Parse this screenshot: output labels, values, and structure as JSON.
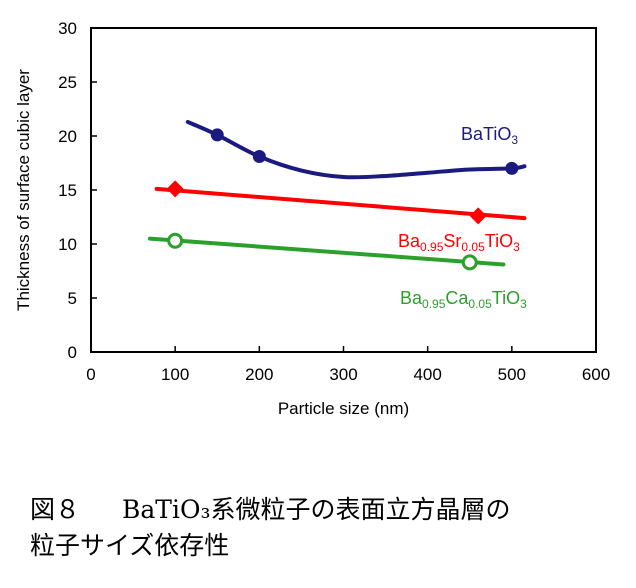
{
  "chart_data": {
    "type": "line",
    "xlabel": "Particle size (nm)",
    "ylabel": "Thickness of surface cubic layer",
    "xlim": [
      0,
      600
    ],
    "ylim": [
      0,
      30
    ],
    "xticks": [
      "0",
      "100",
      "200",
      "300",
      "400",
      "500",
      "600"
    ],
    "yticks": [
      "0",
      "5",
      "10",
      "15",
      "20",
      "25",
      "30"
    ],
    "grid": false,
    "series": [
      {
        "name": "BaTiO3",
        "label_main": "BaTiO",
        "label_sub": "3",
        "color": "#1a1a80",
        "marker": "circle-filled",
        "points": [
          [
            150,
            20.1
          ],
          [
            200,
            18.1
          ],
          [
            500,
            17.0
          ]
        ],
        "curve": [
          [
            115,
            21.3
          ],
          [
            150,
            20.1
          ],
          [
            200,
            18.1
          ],
          [
            250,
            16.8
          ],
          [
            300,
            16.2
          ],
          [
            350,
            16.3
          ],
          [
            400,
            16.6
          ],
          [
            450,
            16.9
          ],
          [
            500,
            17.0
          ],
          [
            515,
            17.2
          ]
        ]
      },
      {
        "name": "Ba0.95Sr0.05TiO3",
        "label_parts": [
          "Ba",
          "0.95",
          "Sr",
          "0.05",
          "TiO",
          "3"
        ],
        "color": "#ff0000",
        "marker": "diamond-filled",
        "points": [
          [
            100,
            15.1
          ],
          [
            460,
            12.6
          ]
        ],
        "curve": [
          [
            78,
            15.1
          ],
          [
            515,
            12.4
          ]
        ]
      },
      {
        "name": "Ba0.95Ca0.05TiO3",
        "label_parts": [
          "Ba",
          "0.95",
          "Ca",
          "0.05",
          "TiO",
          "3"
        ],
        "color": "#2ca02c",
        "marker": "circle-open",
        "points": [
          [
            100,
            10.3
          ],
          [
            450,
            8.3
          ]
        ],
        "curve": [
          [
            70,
            10.5
          ],
          [
            490,
            8.1
          ]
        ]
      }
    ]
  },
  "caption": {
    "figure_label": "図８",
    "line1": "BaTiO₃系微粒子の表面立方晶層の",
    "line2": "粒子サイズ依存性"
  }
}
